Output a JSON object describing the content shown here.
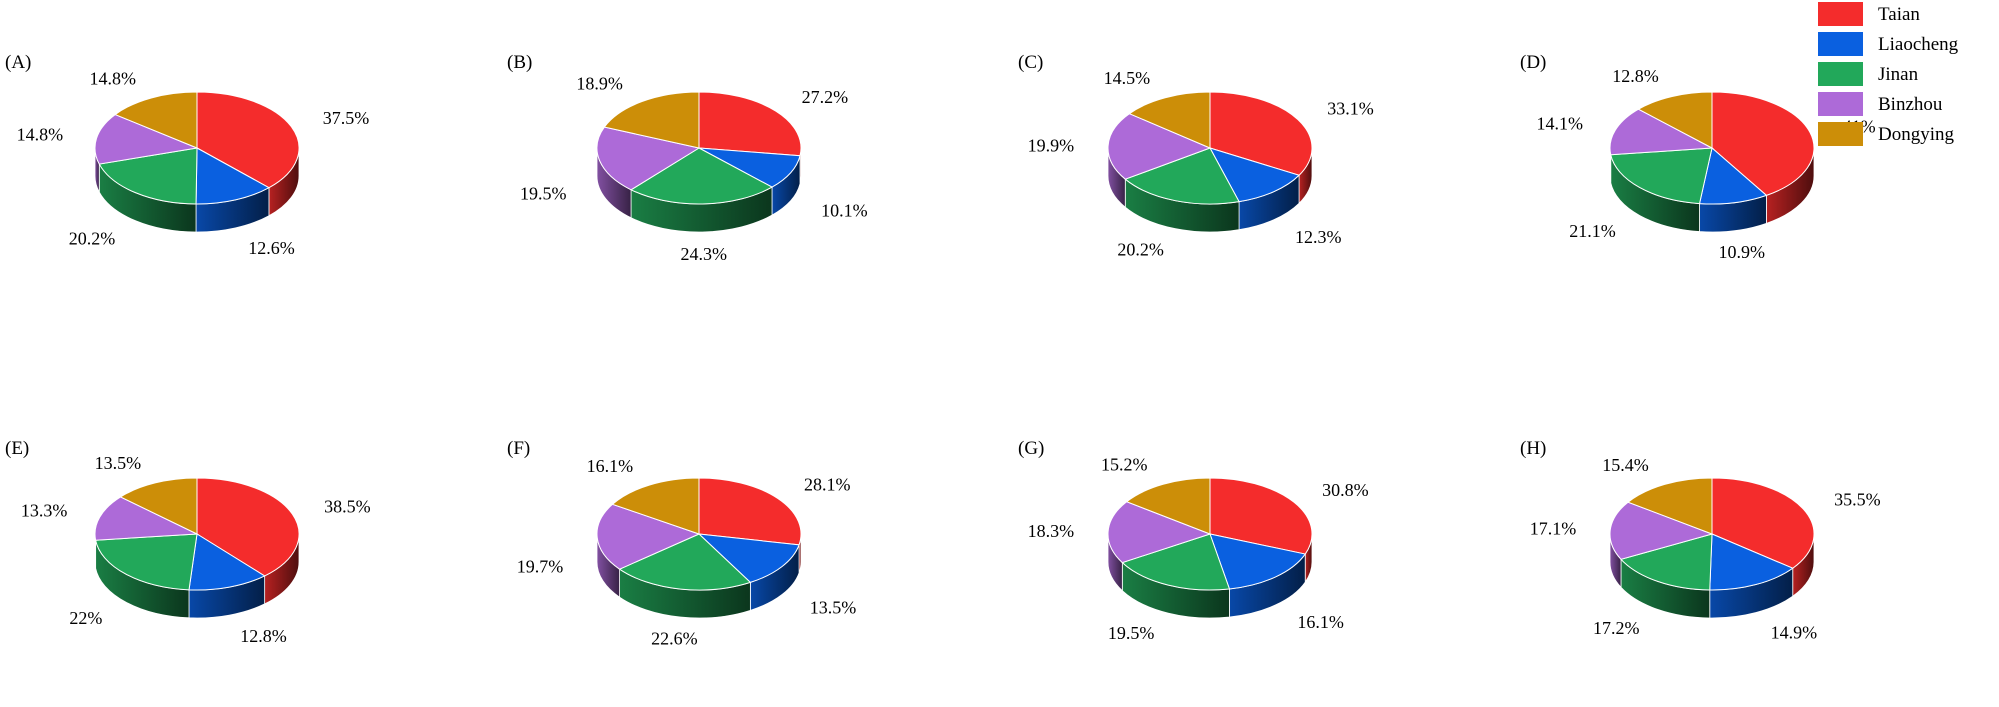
{
  "chart_data": {
    "type": "pie",
    "style": "3d",
    "categories": [
      "Taian",
      "Liaocheng",
      "Jinan",
      "Binzhou",
      "Dongying"
    ],
    "colors": [
      "#f42c2c",
      "#0a60e0",
      "#22a85a",
      "#ad6ad8",
      "#cc8e08"
    ],
    "legend": {
      "position": "top-right",
      "entries": [
        "Taian",
        "Liaocheng",
        "Jinan",
        "Binzhou",
        "Dongying"
      ]
    },
    "panels": [
      {
        "label": "(A)",
        "values": [
          37.5,
          12.6,
          20.2,
          14.8,
          14.8
        ],
        "value_labels": [
          "37.5%",
          "12.6%",
          "20.2%",
          "14.8%",
          "14.8%"
        ]
      },
      {
        "label": "(B)",
        "values": [
          27.2,
          10.1,
          24.3,
          19.5,
          18.9
        ],
        "value_labels": [
          "27.2%",
          "10.1%",
          "24.3%",
          "19.5%",
          "18.9%"
        ]
      },
      {
        "label": "(C)",
        "values": [
          33.1,
          12.3,
          20.2,
          19.9,
          14.5
        ],
        "value_labels": [
          "33.1%",
          "12.3%",
          "20.2%",
          "19.9%",
          "14.5%"
        ]
      },
      {
        "label": "(D)",
        "values": [
          41,
          10.9,
          21.1,
          14.1,
          12.8
        ],
        "value_labels": [
          "41%",
          "10.9%",
          "21.1%",
          "14.1%",
          "12.8%"
        ]
      },
      {
        "label": "(E)",
        "values": [
          38.5,
          12.8,
          22,
          13.3,
          13.5
        ],
        "value_labels": [
          "38.5%",
          "12.8%",
          "22%",
          "13.3%",
          "13.5%"
        ]
      },
      {
        "label": "(F)",
        "values": [
          28.1,
          13.5,
          22.6,
          19.7,
          16.1
        ],
        "value_labels": [
          "28.1%",
          "13.5%",
          "22.6%",
          "19.7%",
          "16.1%"
        ]
      },
      {
        "label": "(G)",
        "values": [
          30.8,
          16.1,
          19.5,
          18.3,
          15.2
        ],
        "value_labels": [
          "30.8%",
          "16.1%",
          "19.5%",
          "18.3%",
          "15.2%"
        ]
      },
      {
        "label": "(H)",
        "values": [
          35.5,
          14.9,
          17.2,
          17.1,
          15.4
        ],
        "value_labels": [
          "35.5%",
          "14.9%",
          "17.2%",
          "17.1%",
          "15.4%"
        ]
      }
    ]
  }
}
